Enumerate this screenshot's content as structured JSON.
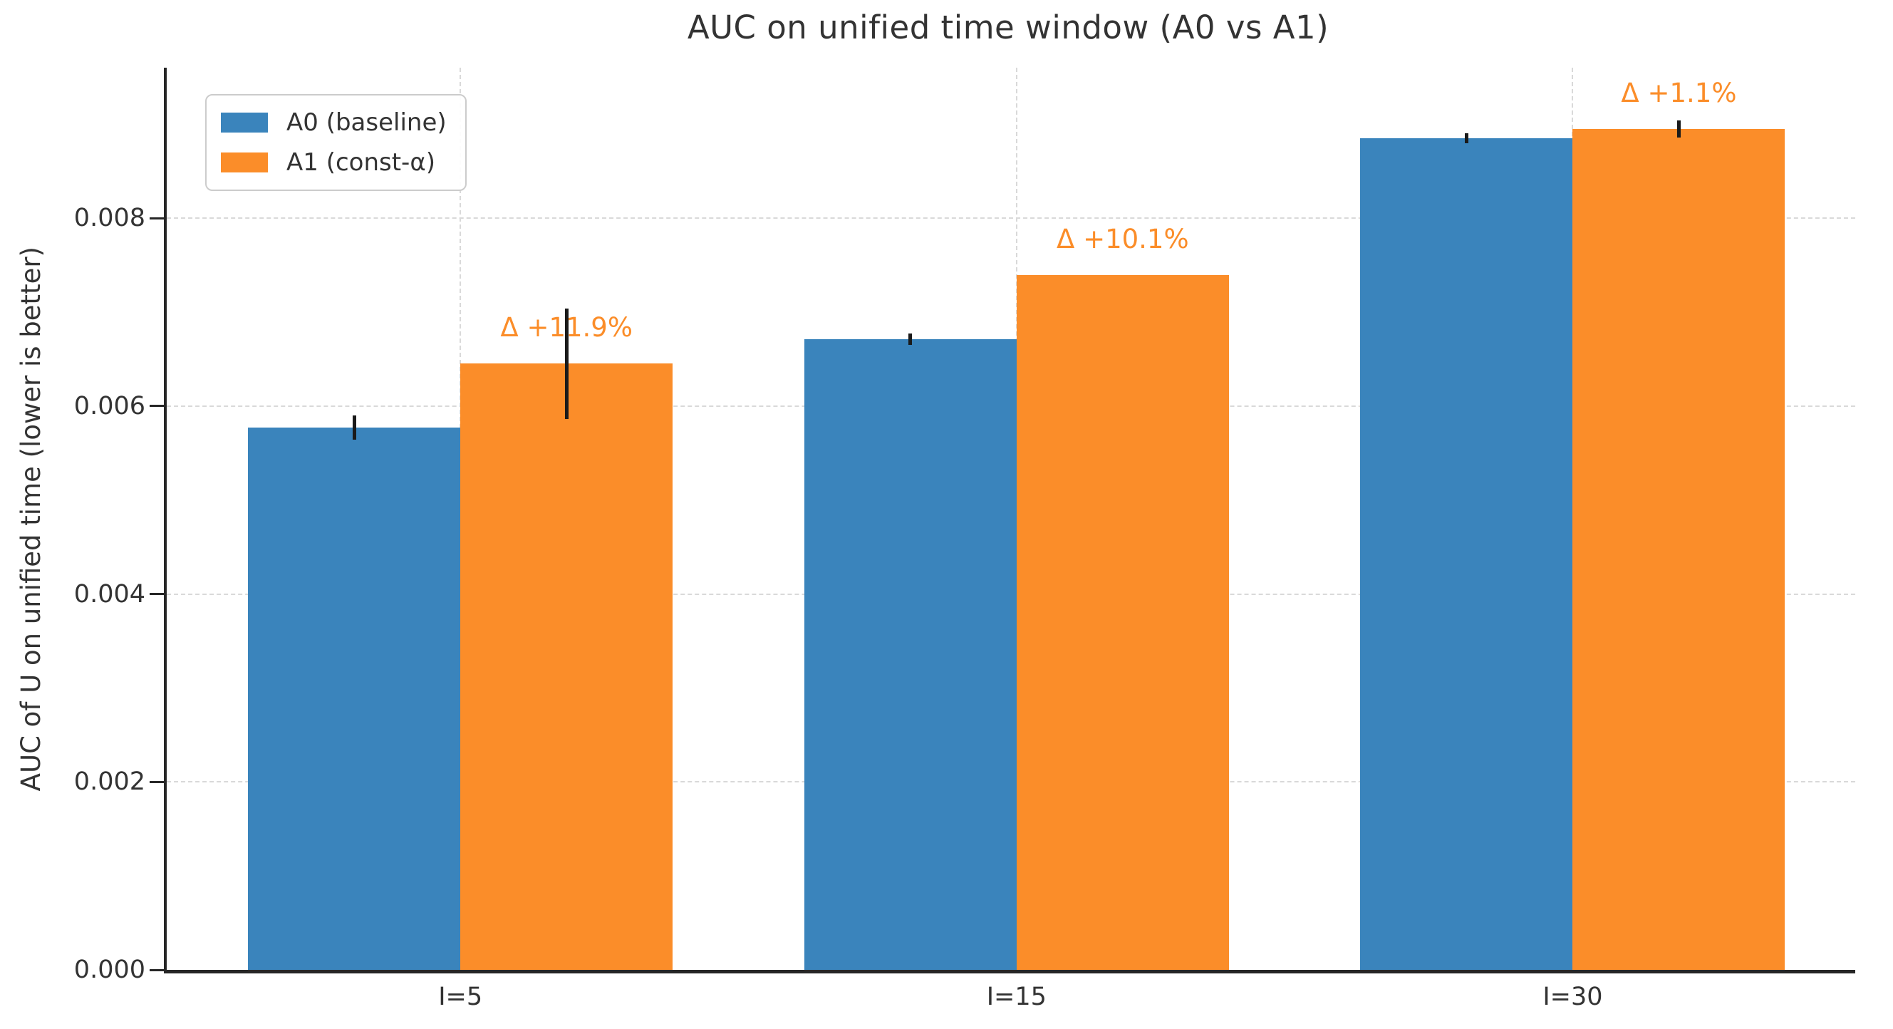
{
  "chart_data": {
    "type": "bar",
    "title": "AUC on unified time window (A0 vs A1)",
    "ylabel": "AUC of U on unified time (lower is better)",
    "xlabel": "",
    "categories": [
      "I=5",
      "I=15",
      "I=30"
    ],
    "series": [
      {
        "name": "A0 (baseline)",
        "color": "#3A84BC",
        "values": [
          0.00577,
          0.00671,
          0.00885
        ],
        "errors": [
          0.00013,
          6e-05,
          5e-05
        ]
      },
      {
        "name": "A1 (const-α)",
        "color": "#FB8D29",
        "values": [
          0.00645,
          0.00739,
          0.00895
        ],
        "errors": [
          0.00059,
          0,
          9e-05
        ]
      }
    ],
    "annotations": [
      {
        "text": "Δ +11.9%",
        "group": 0
      },
      {
        "text": "Δ +10.1%",
        "group": 1
      },
      {
        "text": "Δ +1.1%",
        "group": 2
      }
    ],
    "yticks": [
      0,
      0.002,
      0.004,
      0.006,
      0.008
    ],
    "ytick_labels": [
      "0.000",
      "0.002",
      "0.004",
      "0.006",
      "0.008"
    ],
    "ylim": [
      0,
      0.0096
    ],
    "xlim": [
      -0.528,
      2.508
    ],
    "bar_width": 0.3818,
    "grid": true,
    "legend_position": "upper left",
    "grid_color": "#d9d9d9",
    "errorbar_color": "#1a1a1a",
    "annotation_color": "#FB8D29",
    "text_color": "#333333",
    "spine_color": "#262626"
  }
}
